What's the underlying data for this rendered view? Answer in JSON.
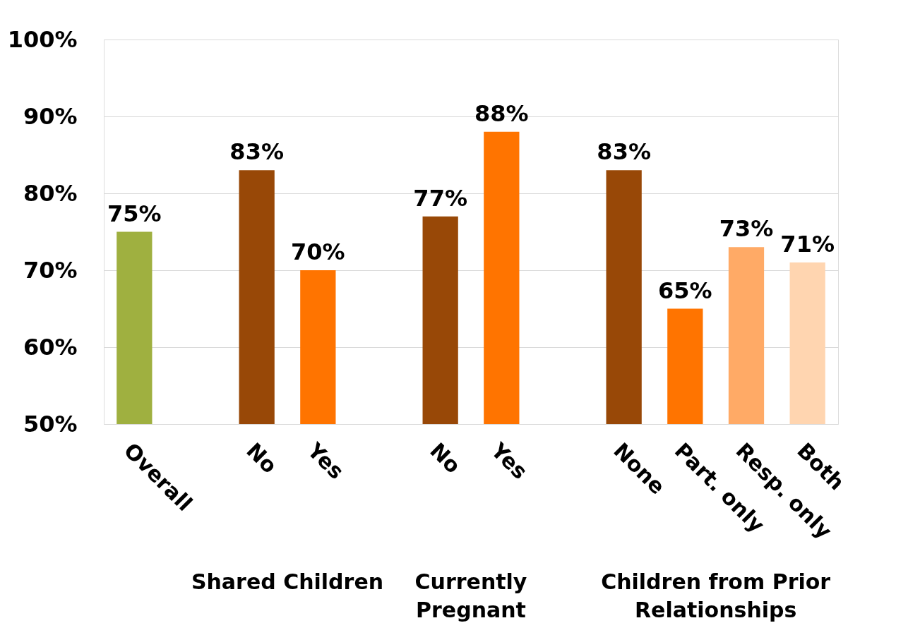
{
  "chart_data": {
    "type": "bar",
    "categories": [
      "Overall",
      null,
      "No",
      "Yes",
      null,
      "No",
      "Yes",
      null,
      "None",
      "Part. only",
      "Resp. only",
      "Both"
    ],
    "values": [
      75,
      null,
      83,
      70,
      null,
      77,
      88,
      null,
      83,
      65,
      73,
      71
    ],
    "colors": [
      "#9fb040",
      null,
      "#984807",
      "#ff7400",
      null,
      "#984807",
      "#ff7400",
      null,
      "#984807",
      "#ff7400",
      "#ffaa66",
      "#ffd5b0"
    ],
    "value_labels": [
      "75%",
      null,
      "83%",
      "70%",
      null,
      "77%",
      "88%",
      null,
      "83%",
      "65%",
      "73%",
      "71%"
    ],
    "ylim": [
      50,
      100
    ],
    "yticks": [
      {
        "value": 50,
        "label": "50%"
      },
      {
        "value": 60,
        "label": "60%"
      },
      {
        "value": 70,
        "label": "70%"
      },
      {
        "value": 80,
        "label": "80%"
      },
      {
        "value": 90,
        "label": "90%"
      },
      {
        "value": 100,
        "label": "100%"
      }
    ],
    "grid": "y",
    "annotations": [
      "Shared Children",
      "Currently\nPregnant",
      "Children from Prior\nRelationships"
    ]
  }
}
